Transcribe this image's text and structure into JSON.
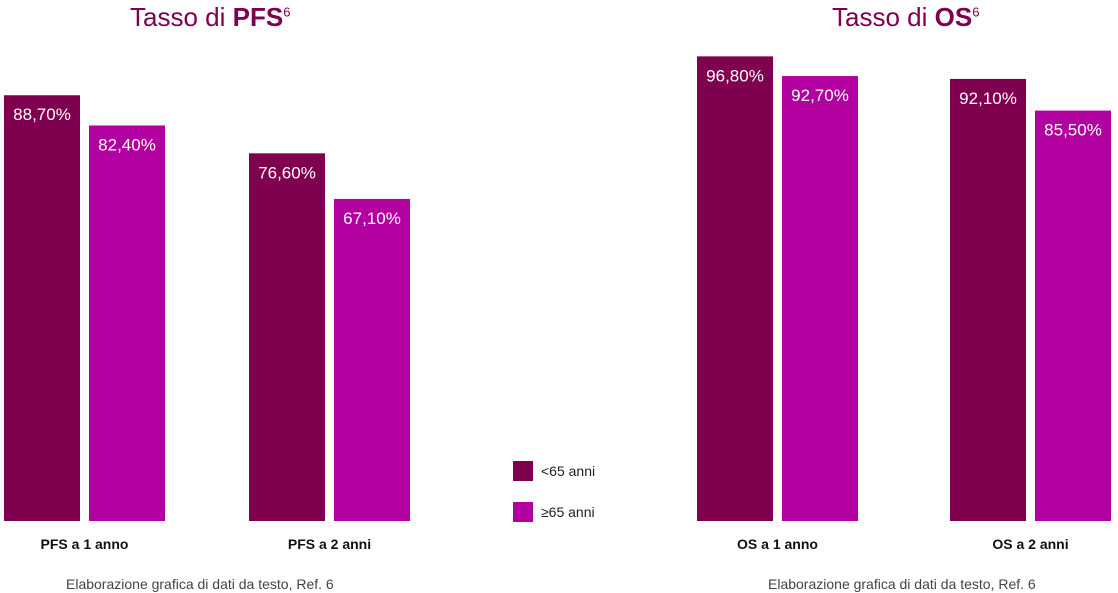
{
  "chart_data": [
    {
      "type": "bar",
      "title_prefix": "Tasso di ",
      "title_bold": "PFS",
      "title_sup": "6",
      "categories": [
        "PFS a 1 anno",
        "PFS a 2 anni"
      ],
      "series": [
        {
          "name": "<65 anni",
          "values": [
            88.7,
            76.6
          ],
          "labels": [
            "88,70%",
            "76,60%"
          ],
          "color": "#800050"
        },
        {
          "name": "≥65 anni",
          "values": [
            82.4,
            67.1
          ],
          "labels": [
            "82,40%",
            "67,10%"
          ],
          "color": "#B300A0"
        }
      ],
      "ylim": [
        0,
        100
      ],
      "grid": false,
      "source": "Elaborazione grafica di dati da testo, Ref. 6"
    },
    {
      "type": "bar",
      "title_prefix": "Tasso di ",
      "title_bold": "OS",
      "title_sup": "6",
      "categories": [
        "OS a 1 anno",
        "OS a 2 anni"
      ],
      "series": [
        {
          "name": "<65 anni",
          "values": [
            96.8,
            92.1
          ],
          "labels": [
            "96,80%",
            "92,10%"
          ],
          "color": "#800050"
        },
        {
          "name": "≥65 anni",
          "values": [
            92.7,
            85.5
          ],
          "labels": [
            "92,70%",
            "85,50%"
          ],
          "color": "#B300A0"
        }
      ],
      "ylim": [
        0,
        100
      ],
      "grid": false,
      "source": "Elaborazione grafica di dati da testo, Ref. 6"
    }
  ],
  "legend": {
    "position": "center",
    "items": [
      {
        "label": "<65 anni",
        "color": "#800050"
      },
      {
        "label": "≥65 anni",
        "color": "#B300A0"
      }
    ]
  }
}
